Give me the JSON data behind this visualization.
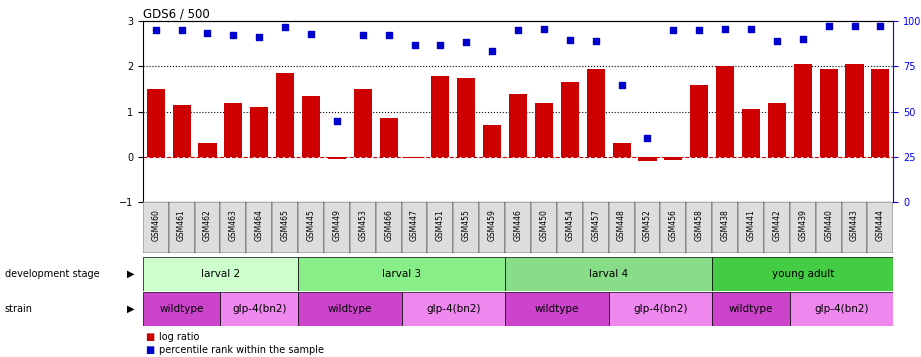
{
  "title": "GDS6 / 500",
  "samples": [
    "GSM460",
    "GSM461",
    "GSM462",
    "GSM463",
    "GSM464",
    "GSM465",
    "GSM445",
    "GSM449",
    "GSM453",
    "GSM466",
    "GSM447",
    "GSM451",
    "GSM455",
    "GSM459",
    "GSM446",
    "GSM450",
    "GSM454",
    "GSM457",
    "GSM448",
    "GSM452",
    "GSM456",
    "GSM458",
    "GSM438",
    "GSM441",
    "GSM442",
    "GSM439",
    "GSM440",
    "GSM443",
    "GSM444"
  ],
  "log_ratio": [
    1.5,
    1.15,
    0.3,
    1.2,
    1.1,
    1.85,
    1.35,
    -0.05,
    1.5,
    0.85,
    -0.03,
    1.8,
    1.75,
    0.7,
    1.4,
    1.2,
    1.65,
    1.95,
    0.3,
    -0.1,
    -0.08,
    1.6,
    2.0,
    1.05,
    1.2,
    2.05,
    1.95,
    2.05,
    1.95
  ],
  "percentile": [
    2.8,
    2.8,
    2.75,
    2.7,
    2.65,
    2.88,
    2.72,
    0.78,
    2.7,
    2.7,
    2.47,
    2.47,
    2.55,
    2.35,
    2.82,
    2.83,
    2.58,
    2.57,
    1.6,
    0.42,
    2.82,
    2.82,
    2.83,
    2.83,
    2.57,
    2.62,
    2.9,
    2.9,
    2.9
  ],
  "bar_color": "#cc0000",
  "dot_color": "#0000cc",
  "dev_stages": [
    {
      "label": "larval 2",
      "start": 0,
      "end": 6,
      "color": "#ccffcc"
    },
    {
      "label": "larval 3",
      "start": 6,
      "end": 14,
      "color": "#88ee88"
    },
    {
      "label": "larval 4",
      "start": 14,
      "end": 22,
      "color": "#88dd88"
    },
    {
      "label": "young adult",
      "start": 22,
      "end": 29,
      "color": "#44cc44"
    }
  ],
  "strains": [
    {
      "label": "wildtype",
      "start": 0,
      "end": 3,
      "color": "#cc44cc"
    },
    {
      "label": "glp-4(bn2)",
      "start": 3,
      "end": 6,
      "color": "#ee88ee"
    },
    {
      "label": "wildtype",
      "start": 6,
      "end": 10,
      "color": "#cc44cc"
    },
    {
      "label": "glp-4(bn2)",
      "start": 10,
      "end": 14,
      "color": "#ee88ee"
    },
    {
      "label": "wildtype",
      "start": 14,
      "end": 18,
      "color": "#cc44cc"
    },
    {
      "label": "glp-4(bn2)",
      "start": 18,
      "end": 22,
      "color": "#ee88ee"
    },
    {
      "label": "wildtype",
      "start": 22,
      "end": 25,
      "color": "#cc44cc"
    },
    {
      "label": "glp-4(bn2)",
      "start": 25,
      "end": 29,
      "color": "#ee88ee"
    }
  ],
  "ylim": [
    -1,
    3
  ],
  "yticks_left": [
    -1,
    0,
    1,
    2,
    3
  ],
  "yticks_right": [
    0,
    25,
    50,
    75,
    100
  ],
  "hlines": [
    0,
    1,
    2
  ],
  "hline_styles": [
    "dashed",
    "dotted",
    "dotted"
  ],
  "hline_colors": [
    "#cc0000",
    "#000000",
    "#000000"
  ]
}
